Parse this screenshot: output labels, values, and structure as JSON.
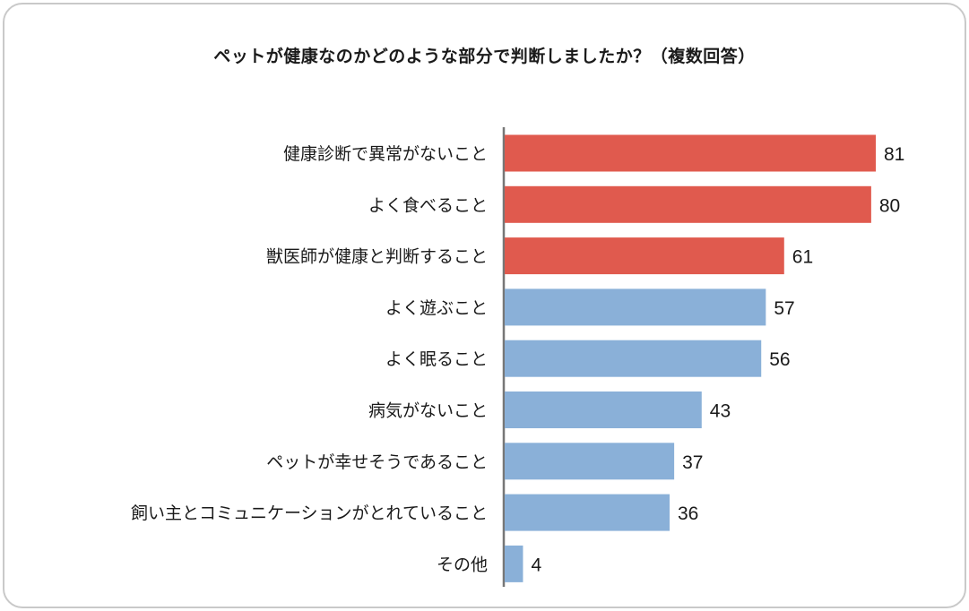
{
  "chart_data": {
    "type": "bar",
    "orientation": "horizontal",
    "title": "ペットが健康なのかどのような部分で判断しましたか？（複数回答）",
    "categories": [
      "健康診断で異常がないこと",
      "よく食べること",
      "獣医師が健康と判断すること",
      "よく遊ぶこと",
      "よく眠ること",
      "病気がないこと",
      "ペットが幸せそうであること",
      "飼い主とコミュニケーションがとれていること",
      "その他"
    ],
    "values": [
      81,
      80,
      61,
      57,
      56,
      43,
      37,
      36,
      4
    ],
    "highlight": [
      true,
      true,
      true,
      false,
      false,
      false,
      false,
      false,
      false
    ],
    "colors": {
      "highlight": "#e05a4e",
      "normal": "#8ab0d8",
      "axis": "#777777"
    },
    "xlim": [
      0,
      81
    ],
    "grid": false,
    "legend": "none"
  }
}
